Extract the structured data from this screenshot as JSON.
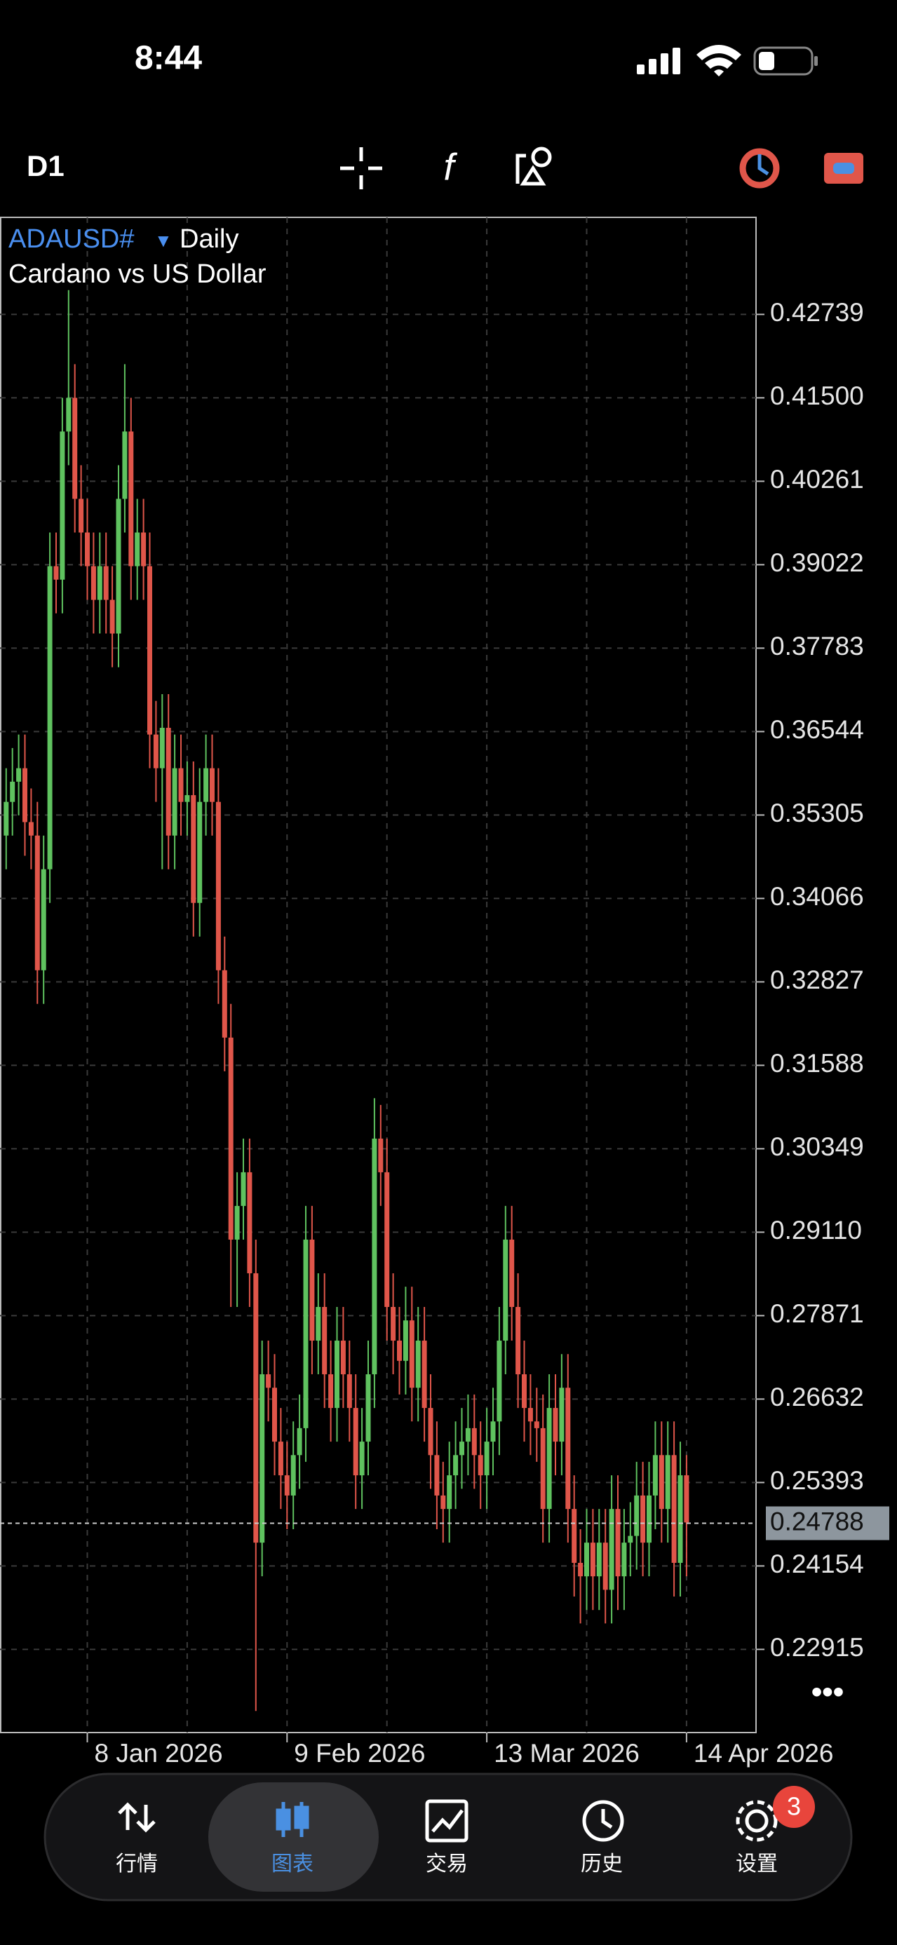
{
  "status_bar": {
    "time": "8:44"
  },
  "toolbar": {
    "timeframe": "D1"
  },
  "chart_data": {
    "type": "candlestick",
    "symbol": "ADAUSD#",
    "period": "Daily",
    "description": "Cardano vs US Dollar",
    "categories": [
      null,
      null,
      null,
      null,
      null,
      null,
      null,
      null,
      null,
      null,
      null,
      null,
      null,
      "8 Jan 2026",
      null,
      null,
      null,
      null,
      null,
      null,
      null,
      null,
      null,
      null,
      null,
      null,
      null,
      null,
      null,
      null,
      null,
      null,
      null,
      null,
      null,
      null,
      null,
      null,
      null,
      null,
      null,
      null,
      null,
      null,
      null,
      "9 Feb 2026",
      null,
      null,
      null,
      null,
      null,
      null,
      null,
      null,
      null,
      null,
      null,
      null,
      null,
      null,
      null,
      null,
      null,
      null,
      null,
      null,
      null,
      null,
      null,
      null,
      null,
      null,
      null,
      null,
      null,
      null,
      null,
      "13 Mar 2026",
      null,
      null,
      null,
      null,
      null,
      null,
      null,
      null,
      null,
      null,
      null,
      null,
      null,
      null,
      null,
      null,
      null,
      null,
      null,
      null,
      null,
      null,
      null,
      null,
      null,
      null,
      null,
      null,
      null,
      null,
      null,
      "14 Apr 2026"
    ],
    "open": [
      0.35,
      0.355,
      0.358,
      0.36,
      0.352,
      0.35,
      0.33,
      0.345,
      0.39,
      0.388,
      0.41,
      0.415,
      0.4,
      0.395,
      0.39,
      0.385,
      0.39,
      0.385,
      0.38,
      0.4,
      0.41,
      0.39,
      0.395,
      0.39,
      0.365,
      0.36,
      0.366,
      0.35,
      0.36,
      0.355,
      0.356,
      0.34,
      0.355,
      0.36,
      0.355,
      0.33,
      0.32,
      0.29,
      0.295,
      0.3,
      0.285,
      0.245,
      0.27,
      0.268,
      0.26,
      0.255,
      0.252,
      0.258,
      0.262,
      0.29,
      0.275,
      0.28,
      0.27,
      0.265,
      0.275,
      0.27,
      0.265,
      0.255,
      0.26,
      0.27,
      0.305,
      0.3,
      0.28,
      0.275,
      0.272,
      0.278,
      0.268,
      0.275,
      0.265,
      0.258,
      0.252,
      0.25,
      0.255,
      0.258,
      0.26,
      0.262,
      0.258,
      0.255,
      0.26,
      0.263,
      0.275,
      0.29,
      0.28,
      0.27,
      0.265,
      0.263,
      0.262,
      0.25,
      0.265,
      0.26,
      0.268,
      0.25,
      0.242,
      0.24,
      0.245,
      0.24,
      0.245,
      0.238,
      0.25,
      0.24,
      0.245,
      0.246,
      0.252,
      0.245,
      0.252,
      0.258,
      0.25,
      0.258,
      0.242,
      0.255
    ],
    "high": [
      0.36,
      0.363,
      0.365,
      0.365,
      0.357,
      0.355,
      0.35,
      0.395,
      0.395,
      0.415,
      0.431,
      0.42,
      0.405,
      0.4,
      0.395,
      0.395,
      0.395,
      0.39,
      0.405,
      0.42,
      0.415,
      0.4,
      0.4,
      0.395,
      0.37,
      0.371,
      0.371,
      0.365,
      0.365,
      0.361,
      0.361,
      0.36,
      0.365,
      0.365,
      0.36,
      0.335,
      0.325,
      0.3,
      0.305,
      0.305,
      0.29,
      0.275,
      0.275,
      0.273,
      0.265,
      0.26,
      0.263,
      0.267,
      0.295,
      0.295,
      0.285,
      0.285,
      0.275,
      0.28,
      0.28,
      0.275,
      0.27,
      0.265,
      0.275,
      0.311,
      0.31,
      0.305,
      0.285,
      0.28,
      0.283,
      0.283,
      0.28,
      0.28,
      0.27,
      0.263,
      0.257,
      0.26,
      0.263,
      0.265,
      0.267,
      0.267,
      0.263,
      0.265,
      0.268,
      0.28,
      0.295,
      0.295,
      0.285,
      0.275,
      0.27,
      0.268,
      0.267,
      0.27,
      0.27,
      0.273,
      0.273,
      0.255,
      0.247,
      0.25,
      0.25,
      0.25,
      0.25,
      0.255,
      0.255,
      0.25,
      0.251,
      0.257,
      0.257,
      0.257,
      0.263,
      0.263,
      0.263,
      0.263,
      0.26,
      0.258
    ],
    "low": [
      0.345,
      0.35,
      0.353,
      0.347,
      0.345,
      0.325,
      0.325,
      0.34,
      0.383,
      0.383,
      0.405,
      0.395,
      0.39,
      0.385,
      0.38,
      0.38,
      0.38,
      0.375,
      0.375,
      0.395,
      0.385,
      0.385,
      0.385,
      0.36,
      0.355,
      0.345,
      0.345,
      0.345,
      0.35,
      0.35,
      0.335,
      0.335,
      0.35,
      0.35,
      0.325,
      0.315,
      0.28,
      0.28,
      0.29,
      0.28,
      0.22,
      0.24,
      0.263,
      0.255,
      0.25,
      0.247,
      0.247,
      0.253,
      0.257,
      0.27,
      0.27,
      0.265,
      0.26,
      0.26,
      0.265,
      0.26,
      0.25,
      0.25,
      0.255,
      0.265,
      0.295,
      0.275,
      0.27,
      0.267,
      0.267,
      0.263,
      0.263,
      0.26,
      0.253,
      0.247,
      0.245,
      0.245,
      0.25,
      0.253,
      0.255,
      0.253,
      0.25,
      0.25,
      0.255,
      0.258,
      0.27,
      0.275,
      0.265,
      0.26,
      0.258,
      0.257,
      0.245,
      0.245,
      0.255,
      0.255,
      0.245,
      0.237,
      0.233,
      0.235,
      0.235,
      0.235,
      0.233,
      0.233,
      0.235,
      0.235,
      0.24,
      0.241,
      0.24,
      0.24,
      0.247,
      0.245,
      0.245,
      0.237,
      0.237,
      0.24
    ],
    "close": [
      0.355,
      0.358,
      0.36,
      0.352,
      0.35,
      0.33,
      0.345,
      0.39,
      0.388,
      0.41,
      0.415,
      0.4,
      0.395,
      0.39,
      0.385,
      0.39,
      0.385,
      0.38,
      0.4,
      0.41,
      0.39,
      0.395,
      0.39,
      0.365,
      0.36,
      0.366,
      0.35,
      0.36,
      0.355,
      0.356,
      0.34,
      0.355,
      0.36,
      0.355,
      0.33,
      0.32,
      0.29,
      0.295,
      0.3,
      0.285,
      0.245,
      0.27,
      0.268,
      0.26,
      0.255,
      0.252,
      0.258,
      0.262,
      0.29,
      0.275,
      0.28,
      0.27,
      0.265,
      0.275,
      0.27,
      0.265,
      0.255,
      0.26,
      0.27,
      0.305,
      0.3,
      0.28,
      0.275,
      0.272,
      0.278,
      0.268,
      0.275,
      0.265,
      0.258,
      0.252,
      0.25,
      0.255,
      0.258,
      0.26,
      0.262,
      0.258,
      0.255,
      0.26,
      0.263,
      0.275,
      0.29,
      0.28,
      0.27,
      0.265,
      0.263,
      0.262,
      0.25,
      0.265,
      0.26,
      0.268,
      0.25,
      0.242,
      0.24,
      0.245,
      0.24,
      0.245,
      0.238,
      0.25,
      0.24,
      0.245,
      0.246,
      0.252,
      0.245,
      0.252,
      0.258,
      0.25,
      0.258,
      0.242,
      0.255,
      0.248
    ],
    "up_color": "#5fc25f",
    "down_color": "#e0564a",
    "ylim": [
      0.2168,
      0.4418
    ],
    "yticks": [
      0.42739,
      {
        "value": 0.415,
        "label": "0.41500"
      },
      0.40261,
      0.39022,
      0.37783,
      0.36544,
      0.35305,
      0.34066,
      0.32827,
      0.31588,
      0.30349,
      {
        "value": 0.2911,
        "label": "0.29110"
      },
      0.27871,
      0.26632,
      0.25393,
      0.24154,
      0.22915
    ],
    "last_price": 0.24788,
    "grid": true
  },
  "tab_bar": {
    "tabs": [
      {
        "label": "行情"
      },
      {
        "label": "图表"
      },
      {
        "label": "交易"
      },
      {
        "label": "历史"
      },
      {
        "label": "设置"
      }
    ],
    "active": 1,
    "badge": 3
  }
}
